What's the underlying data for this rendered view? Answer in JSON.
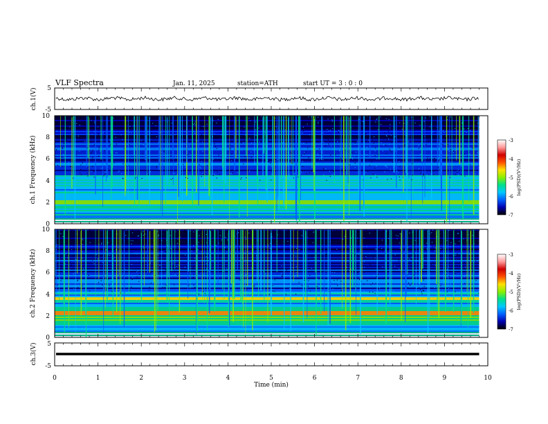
{
  "header": {
    "title": "VLF  Spectra",
    "date": "Jan. 11, 2025",
    "station": "station=ATH",
    "start": "start  UT  =    3  : 0   : 0"
  },
  "chart_data": [
    {
      "type": "line",
      "panel": "ch1-waveform",
      "ylabel": "ch.1(V)",
      "yticks": [
        "5",
        "-5"
      ],
      "ylim": [
        -5,
        5
      ],
      "xlim": [
        0,
        10
      ],
      "baseline": 0,
      "trace_end_min": 9.8
    },
    {
      "type": "heatmap",
      "panel": "ch1-spectrogram",
      "ylabel": "ch.1 Frequency  (kHz)",
      "yticks": [
        "0",
        "2",
        "4",
        "6",
        "8",
        "10"
      ],
      "ylim": [
        0,
        10
      ],
      "xlim": [
        0,
        10
      ],
      "data_end_min": 9.8,
      "colorbar": {
        "label": "log(PSD)(V²/Hz)",
        "ticks": [
          "-3",
          "-4",
          "-5",
          "-6",
          "-7"
        ],
        "range": [
          -7,
          -3
        ],
        "colors": [
          "#000000",
          "#0000b0",
          "#0060ff",
          "#00c8ff",
          "#00e08a",
          "#8cf000",
          "#ffe000",
          "#ff5000",
          "#d00000",
          "#ff9a9a",
          "#ffffff"
        ]
      }
    },
    {
      "type": "heatmap",
      "panel": "ch2-spectrogram",
      "ylabel": "ch.2 Frequency  (kHz)",
      "yticks": [
        "0",
        "2",
        "4",
        "6",
        "8",
        "10"
      ],
      "ylim": [
        0,
        10
      ],
      "xlim": [
        0,
        10
      ],
      "data_end_min": 9.8,
      "colorbar": {
        "label": "log(PSD)(V²/Hz)",
        "ticks": [
          "-3",
          "-4",
          "-5",
          "-6",
          "-7"
        ],
        "range": [
          -7,
          -3
        ],
        "colors": [
          "#000000",
          "#0000b0",
          "#0060ff",
          "#00c8ff",
          "#00e08a",
          "#8cf000",
          "#ffe000",
          "#ff5000",
          "#d00000",
          "#ff9a9a",
          "#ffffff"
        ]
      }
    },
    {
      "type": "line",
      "panel": "ch3-waveform",
      "ylabel": "ch.3(V)",
      "yticks": [
        "5",
        "-5"
      ],
      "ylim": [
        -5,
        5
      ],
      "xlim": [
        0,
        10
      ],
      "baseline": 0,
      "trace_end_min": 9.8
    }
  ],
  "xaxis": {
    "label": "Time  (min)",
    "ticks": [
      "0",
      "1",
      "2",
      "3",
      "4",
      "5",
      "6",
      "7",
      "8",
      "9",
      "10"
    ]
  }
}
